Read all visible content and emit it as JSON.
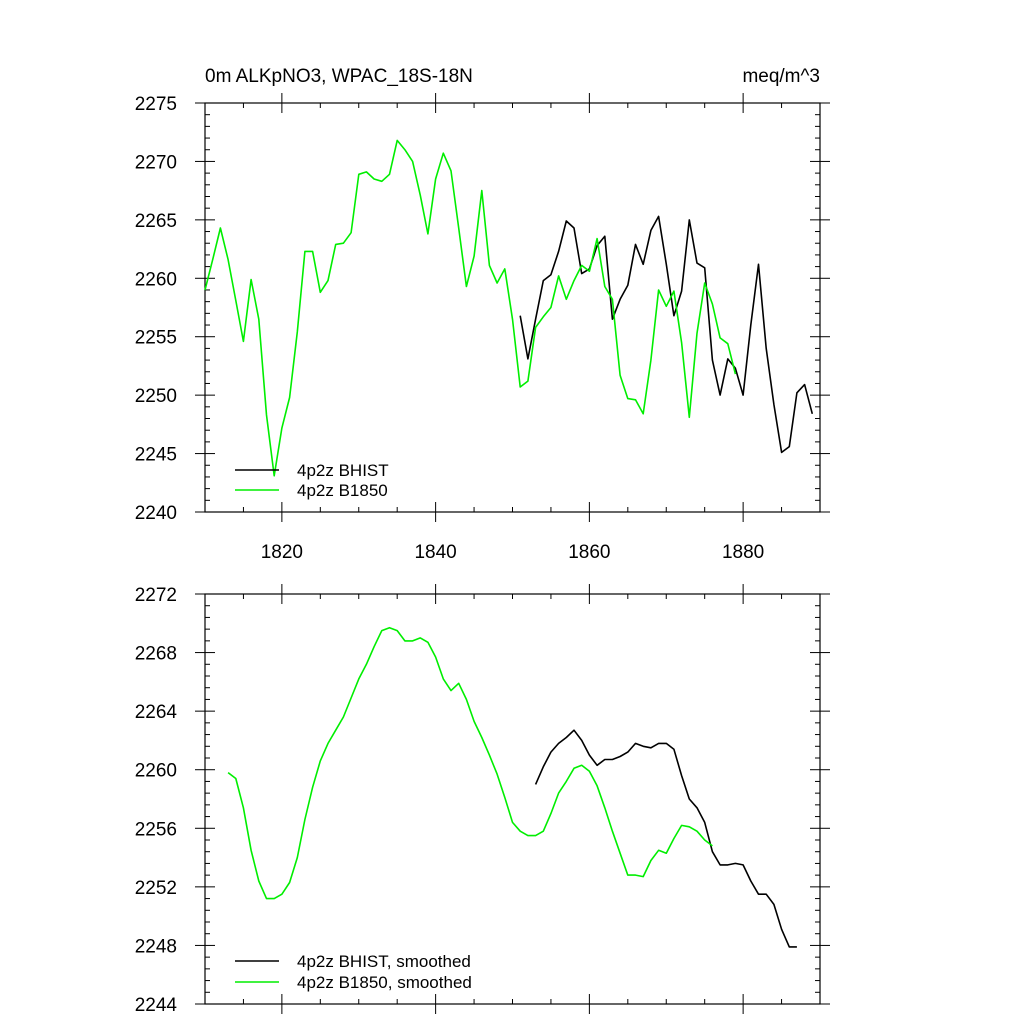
{
  "figure": {
    "title_left": "0m ALKpNO3, WPAC_18S-18N",
    "title_right": "meq/m^3"
  },
  "colors": {
    "bhist": "#000000",
    "b1850": "#00ee00",
    "axes": "#000000"
  },
  "chart_data": [
    {
      "type": "line",
      "title": "0m ALKpNO3, WPAC_18S-18N",
      "units": "meq/m^3",
      "xlim": [
        1810,
        1890
      ],
      "ylim": [
        2240,
        2275
      ],
      "xticks": [
        1820,
        1840,
        1860,
        1880
      ],
      "xtick_labels": [
        "1820",
        "1840",
        "1860",
        "1880"
      ],
      "yticks": [
        2240,
        2245,
        2250,
        2255,
        2260,
        2265,
        2270,
        2275
      ],
      "ytick_labels": [
        "2240",
        "2245",
        "2250",
        "2255",
        "2260",
        "2265",
        "2270",
        "2275"
      ],
      "legend_placement": "bottom-left",
      "series": [
        {
          "name": "4p2z BHIST",
          "color": "#000000",
          "x": [
            1851,
            1852,
            1853,
            1854,
            1855,
            1856,
            1857,
            1858,
            1859,
            1860,
            1861,
            1862,
            1863,
            1864,
            1865,
            1866,
            1867,
            1868,
            1869,
            1870,
            1871,
            1872,
            1873,
            1874,
            1875,
            1876,
            1877,
            1878,
            1879,
            1880,
            1881,
            1882,
            1883,
            1884,
            1885,
            1886,
            1887,
            1888,
            1889
          ],
          "y": [
            2256.8,
            2253.1,
            2256.5,
            2259.8,
            2260.3,
            2262.3,
            2264.9,
            2264.3,
            2260.4,
            2260.8,
            2262.8,
            2263.6,
            2256.5,
            2258.2,
            2259.4,
            2262.9,
            2261.2,
            2264.1,
            2265.3,
            2261.2,
            2256.8,
            2258.9,
            2265.0,
            2261.3,
            2260.9,
            2253.0,
            2250.0,
            2253.1,
            2252.3,
            2250.0,
            2256.0,
            2261.2,
            2254.0,
            2249.2,
            2245.1,
            2245.6,
            2250.2,
            2250.9,
            2248.4
          ]
        },
        {
          "name": "4p2z B1850",
          "color": "#00ee00",
          "x": [
            1810,
            1811,
            1812,
            1813,
            1814,
            1815,
            1816,
            1817,
            1818,
            1819,
            1820,
            1821,
            1822,
            1823,
            1824,
            1825,
            1826,
            1827,
            1828,
            1829,
            1830,
            1831,
            1832,
            1833,
            1834,
            1835,
            1836,
            1837,
            1838,
            1839,
            1840,
            1841,
            1842,
            1843,
            1844,
            1845,
            1846,
            1847,
            1848,
            1849,
            1850,
            1851,
            1852,
            1853,
            1854,
            1855,
            1856,
            1857,
            1858,
            1859,
            1860,
            1861,
            1862,
            1863,
            1864,
            1865,
            1866,
            1867,
            1868,
            1869,
            1870,
            1871,
            1872,
            1873,
            1874,
            1875,
            1876,
            1877,
            1878,
            1879
          ],
          "y": [
            2259.0,
            2261.6,
            2264.3,
            2261.6,
            2258.1,
            2254.6,
            2259.9,
            2256.5,
            2248.3,
            2243.1,
            2247.2,
            2249.8,
            2255.4,
            2262.3,
            2262.3,
            2258.8,
            2259.8,
            2262.9,
            2263.0,
            2263.9,
            2268.9,
            2269.1,
            2268.5,
            2268.3,
            2268.9,
            2271.8,
            2271.0,
            2270.0,
            2267.1,
            2263.8,
            2268.5,
            2270.7,
            2269.2,
            2264.3,
            2259.3,
            2261.9,
            2267.5,
            2261.1,
            2259.6,
            2260.8,
            2256.5,
            2250.7,
            2251.2,
            2255.8,
            2256.7,
            2257.5,
            2260.2,
            2258.2,
            2259.8,
            2261.1,
            2260.6,
            2263.4,
            2259.3,
            2258.2,
            2251.7,
            2249.7,
            2249.6,
            2248.4,
            2253.0,
            2259.0,
            2257.6,
            2258.9,
            2254.5,
            2248.1,
            2255.3,
            2259.6,
            2257.8,
            2254.9,
            2254.4,
            2251.8
          ]
        }
      ]
    },
    {
      "type": "line",
      "xlim": [
        1810,
        1890
      ],
      "ylim": [
        2244,
        2272
      ],
      "xticks": [
        1820,
        1840,
        1860,
        1880
      ],
      "yticks": [
        2244,
        2248,
        2252,
        2256,
        2260,
        2264,
        2268,
        2272
      ],
      "ytick_labels": [
        "2244",
        "2248",
        "2252",
        "2256",
        "2260",
        "2264",
        "2268",
        "2272"
      ],
      "legend_placement": "bottom-left",
      "series": [
        {
          "name": "4p2z BHIST, smoothed",
          "color": "#000000",
          "x": [
            1853,
            1854,
            1855,
            1856,
            1857,
            1858,
            1859,
            1860,
            1861,
            1862,
            1863,
            1864,
            1865,
            1866,
            1867,
            1868,
            1869,
            1870,
            1871,
            1872,
            1873,
            1874,
            1875,
            1876,
            1877,
            1878,
            1879,
            1880,
            1881,
            1882,
            1883,
            1884,
            1885,
            1886,
            1887
          ],
          "y": [
            2259.0,
            2260.2,
            2261.2,
            2261.8,
            2262.2,
            2262.7,
            2262.0,
            2261.0,
            2260.3,
            2260.7,
            2260.7,
            2260.9,
            2261.2,
            2261.8,
            2261.6,
            2261.5,
            2261.8,
            2261.8,
            2261.4,
            2259.6,
            2258.0,
            2257.4,
            2256.4,
            2254.4,
            2253.5,
            2253.5,
            2253.6,
            2253.5,
            2252.4,
            2251.5,
            2251.5,
            2250.8,
            2249.1,
            2247.9,
            2247.9
          ]
        },
        {
          "name": "4p2z B1850, smoothed",
          "color": "#00ee00",
          "x": [
            1813,
            1814,
            1815,
            1816,
            1817,
            1818,
            1819,
            1820,
            1821,
            1822,
            1823,
            1824,
            1825,
            1826,
            1827,
            1828,
            1829,
            1830,
            1831,
            1832,
            1833,
            1834,
            1835,
            1836,
            1837,
            1838,
            1839,
            1840,
            1841,
            1842,
            1843,
            1844,
            1845,
            1846,
            1847,
            1848,
            1849,
            1850,
            1851,
            1852,
            1853,
            1854,
            1855,
            1856,
            1857,
            1858,
            1859,
            1860,
            1861,
            1862,
            1863,
            1864,
            1865,
            1866,
            1867,
            1868,
            1869,
            1870,
            1871,
            1872,
            1873,
            1874,
            1875,
            1876
          ],
          "y": [
            2259.8,
            2259.4,
            2257.4,
            2254.5,
            2252.4,
            2251.2,
            2251.2,
            2251.5,
            2252.3,
            2254.0,
            2256.6,
            2258.8,
            2260.6,
            2261.8,
            2262.7,
            2263.6,
            2264.9,
            2266.2,
            2267.2,
            2268.4,
            2269.5,
            2269.7,
            2269.5,
            2268.8,
            2268.8,
            2269.0,
            2268.7,
            2267.7,
            2266.2,
            2265.4,
            2265.9,
            2264.8,
            2263.3,
            2262.2,
            2261.0,
            2259.7,
            2258.1,
            2256.4,
            2255.8,
            2255.5,
            2255.5,
            2255.8,
            2257.0,
            2258.4,
            2259.2,
            2260.1,
            2260.3,
            2259.9,
            2258.9,
            2257.4,
            2255.8,
            2254.3,
            2252.8,
            2252.8,
            2252.7,
            2253.8,
            2254.5,
            2254.3,
            2255.3,
            2256.2,
            2256.1,
            2255.8,
            2255.2,
            2254.8
          ]
        }
      ]
    }
  ]
}
